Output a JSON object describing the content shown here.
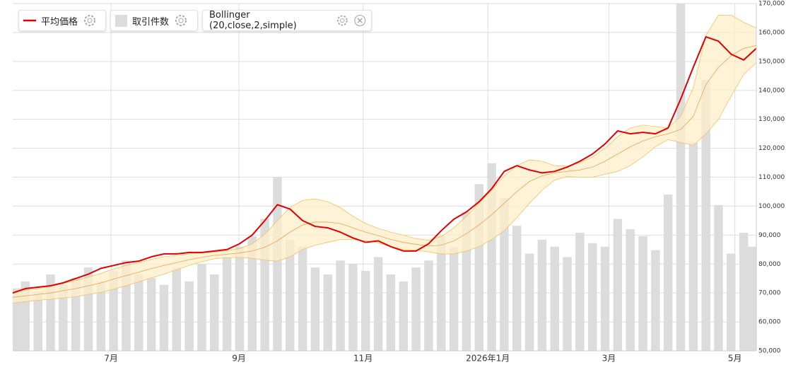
{
  "chart_data": {
    "type": "line",
    "legend": "top-left",
    "grid": true,
    "xlim": [
      0,
      59
    ],
    "xticks": [
      {
        "value": 7.8,
        "label": "7月"
      },
      {
        "value": 17.95,
        "label": "9月"
      },
      {
        "value": 27.8,
        "label": "11月"
      },
      {
        "value": 37.7,
        "label": "2026年1月"
      },
      {
        "value": 47.3,
        "label": "3月"
      },
      {
        "value": 57.3,
        "label": "5月"
      }
    ],
    "ylim": [
      50000,
      170000
    ],
    "yticks": [
      {
        "value": 50000,
        "label": "50,000"
      },
      {
        "value": 60000,
        "label": "60,000"
      },
      {
        "value": 70000,
        "label": "70,000"
      },
      {
        "value": 80000,
        "label": "80,000"
      },
      {
        "value": 90000,
        "label": "90,000"
      },
      {
        "value": 100000,
        "label": "100,000"
      },
      {
        "value": 110000,
        "label": "110,000"
      },
      {
        "value": 120000,
        "label": "120,000"
      },
      {
        "value": 130000,
        "label": "130,000"
      },
      {
        "value": 140000,
        "label": "140,000"
      },
      {
        "value": 150000,
        "label": "150,000"
      },
      {
        "value": 160000,
        "label": "160,000"
      },
      {
        "value": 170000,
        "label": "170,000"
      }
    ],
    "y2lim": [
      0,
      100
    ],
    "series": [
      {
        "name": "平均価格",
        "color": "#e00000",
        "values": [
          70000,
          71500,
          72000,
          72500,
          73500,
          75000,
          76500,
          78500,
          79500,
          80500,
          81000,
          82500,
          83500,
          83500,
          84000,
          84000,
          84500,
          85000,
          87000,
          90000,
          95000,
          100500,
          99000,
          95000,
          93000,
          92500,
          91000,
          89000,
          87500,
          88000,
          86000,
          84500,
          84500,
          87000,
          91500,
          95500,
          98000,
          101500,
          106000,
          112000,
          114000,
          112500,
          111500,
          112000,
          113500,
          115500,
          118000,
          121500,
          126000,
          125000,
          125500,
          125000,
          127000,
          137000,
          148000,
          158500,
          157000,
          152500,
          150500,
          154500
        ]
      },
      {
        "name": "取引件数",
        "color": "#dcdcdc",
        "type": "bar",
        "axis": "y2",
        "values": [
          18,
          20,
          17,
          22,
          19,
          21,
          24,
          20,
          23,
          26,
          22,
          21,
          19,
          24,
          20,
          25,
          22,
          27,
          30,
          33,
          38,
          50,
          32,
          30,
          24,
          22,
          26,
          25,
          23,
          27,
          22,
          20,
          24,
          26,
          33,
          30,
          40,
          48,
          54,
          44,
          36,
          28,
          32,
          30,
          27,
          34,
          31,
          30,
          38,
          35,
          33,
          29,
          45,
          100,
          60,
          78,
          42,
          28,
          34,
          30
        ]
      }
    ],
    "bollinger": {
      "name": "Bollinger (20,close,2,simple)",
      "fill": "#fdefc8",
      "edge": "#f5c060",
      "middle_color": "#f0a050",
      "middle": [
        68500,
        69000,
        69500,
        70000,
        70800,
        71500,
        72500,
        73500,
        74800,
        76000,
        77200,
        78400,
        79500,
        80500,
        81500,
        82300,
        83000,
        83400,
        83800,
        84500,
        85800,
        88000,
        91000,
        93500,
        94500,
        94500,
        94000,
        92500,
        91000,
        89800,
        88500,
        87500,
        86800,
        86200,
        86500,
        88000,
        90500,
        93500,
        97000,
        101000,
        105000,
        108500,
        110500,
        111500,
        112000,
        112500,
        113500,
        115500,
        118000,
        120500,
        122500,
        124000,
        125000,
        126500,
        131000,
        142000,
        148000,
        152000,
        154500,
        155500
      ],
      "upper": [
        70500,
        71000,
        71500,
        72200,
        73300,
        74300,
        75500,
        76800,
        78300,
        79500,
        80500,
        81600,
        82500,
        83000,
        83500,
        83800,
        84200,
        84600,
        85300,
        87000,
        90300,
        95000,
        99500,
        102000,
        102500,
        101500,
        99500,
        96500,
        94000,
        92300,
        91000,
        90000,
        88800,
        88200,
        89500,
        92500,
        96500,
        101000,
        105500,
        110500,
        114000,
        116000,
        115500,
        114000,
        113800,
        115000,
        117000,
        120000,
        124000,
        127000,
        128000,
        127500,
        127000,
        131000,
        141000,
        159000,
        166000,
        166000,
        163500,
        161500
      ],
      "lower": [
        66500,
        67000,
        67500,
        67800,
        68300,
        68700,
        69500,
        70200,
        71300,
        72500,
        73900,
        75200,
        76500,
        78000,
        79500,
        80800,
        81800,
        82200,
        82300,
        82000,
        81300,
        81000,
        82500,
        85000,
        86500,
        87500,
        88500,
        88500,
        88000,
        87300,
        86000,
        85000,
        84800,
        84200,
        83500,
        83500,
        84500,
        86000,
        88500,
        91500,
        96000,
        101000,
        105500,
        109000,
        110200,
        110000,
        110000,
        111000,
        112000,
        114000,
        117000,
        120500,
        123000,
        122000,
        121000,
        125000,
        130000,
        138000,
        145500,
        149500
      ]
    }
  }
}
